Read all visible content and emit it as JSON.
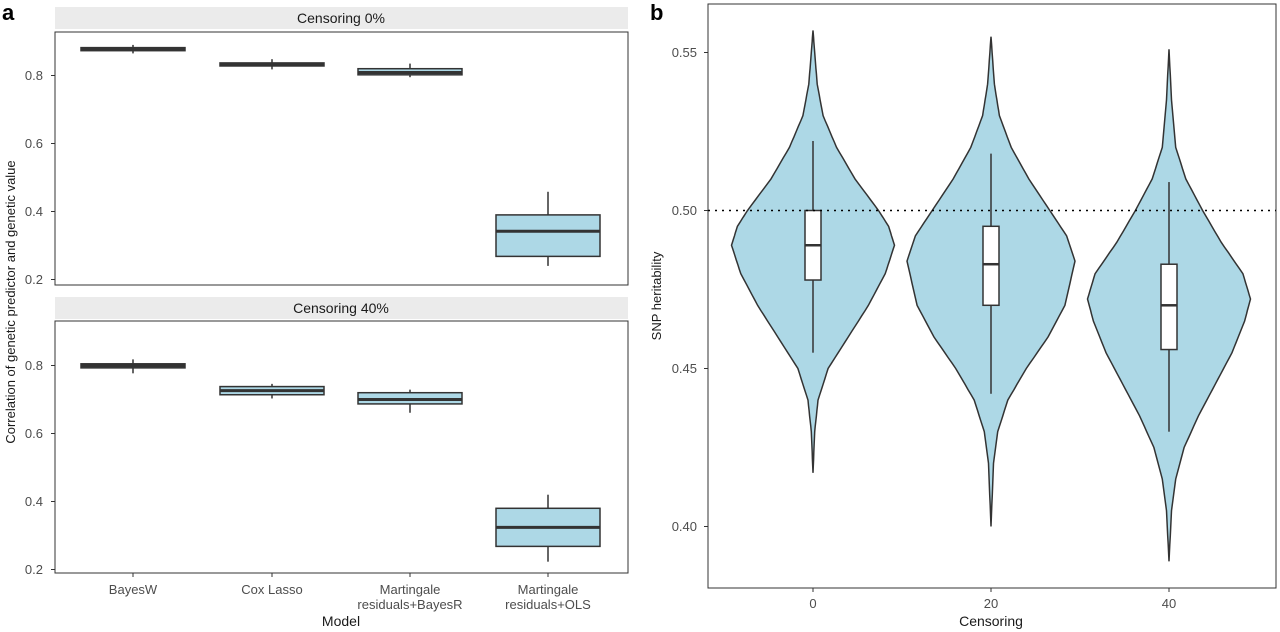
{
  "panel_a": {
    "label": "a",
    "ylabel": "Correlation of genetic predictor and genetic value",
    "xlabel": "Model",
    "categories": [
      "BayesW",
      "Cox Lasso",
      "Martingale\nresiduals+BayesR",
      "Martingale\nresiduals+OLS"
    ],
    "yticks": [
      "0.2",
      "0.4",
      "0.6",
      "0.8"
    ],
    "facets": [
      {
        "title": "Censoring 0%"
      },
      {
        "title": "Censoring 40%"
      }
    ]
  },
  "panel_b": {
    "label": "b",
    "ylabel": "SNP heritability",
    "xlabel": "Censoring",
    "xticks": [
      "0",
      "20",
      "40"
    ],
    "yticks": [
      "0.40",
      "0.45",
      "0.50",
      "0.55"
    ],
    "reference_line": 0.5
  },
  "colors": {
    "fill": "#add8e6",
    "line": "#333333",
    "strip": "#ebebeb",
    "axis_text": "#4d4d4d"
  },
  "chart_data": [
    {
      "type": "boxplot",
      "title": "Censoring 0%",
      "xlabel": "Model",
      "ylabel": "Correlation of genetic predictor and genetic value",
      "ylim": [
        0.19,
        0.92
      ],
      "categories": [
        "BayesW",
        "Cox Lasso",
        "Martingale residuals+BayesR",
        "Martingale residuals+OLS"
      ],
      "boxes": [
        {
          "min": 0.865,
          "q1": 0.873,
          "median": 0.878,
          "q3": 0.882,
          "max": 0.89
        },
        {
          "min": 0.818,
          "q1": 0.828,
          "median": 0.833,
          "q3": 0.837,
          "max": 0.848
        },
        {
          "min": 0.795,
          "q1": 0.802,
          "median": 0.809,
          "q3": 0.82,
          "max": 0.835
        },
        {
          "min": 0.24,
          "q1": 0.268,
          "median": 0.342,
          "q3": 0.39,
          "max": 0.458
        }
      ]
    },
    {
      "type": "boxplot",
      "title": "Censoring 40%",
      "xlabel": "Model",
      "ylabel": "Correlation of genetic predictor and genetic value",
      "ylim": [
        0.19,
        0.92
      ],
      "categories": [
        "BayesW",
        "Cox Lasso",
        "Martingale residuals+BayesR",
        "Martingale residuals+OLS"
      ],
      "boxes": [
        {
          "min": 0.777,
          "q1": 0.793,
          "median": 0.799,
          "q3": 0.805,
          "max": 0.818
        },
        {
          "min": 0.703,
          "q1": 0.714,
          "median": 0.726,
          "q3": 0.738,
          "max": 0.746
        },
        {
          "min": 0.661,
          "q1": 0.687,
          "median": 0.7,
          "q3": 0.72,
          "max": 0.729
        },
        {
          "min": 0.223,
          "q1": 0.268,
          "median": 0.324,
          "q3": 0.38,
          "max": 0.42
        }
      ]
    },
    {
      "type": "violin",
      "xlabel": "Censoring",
      "ylabel": "SNP heritability",
      "ylim": [
        0.385,
        0.565
      ],
      "categories": [
        "0",
        "20",
        "40"
      ],
      "reference_line": 0.5,
      "violins": [
        {
          "min": 0.417,
          "max": 0.557,
          "box": {
            "lower_whisker": 0.455,
            "q1": 0.478,
            "median": 0.489,
            "q3": 0.5,
            "upper_whisker": 0.522
          },
          "width_profile": [
            [
              0.417,
              0
            ],
            [
              0.43,
              0.02
            ],
            [
              0.44,
              0.06
            ],
            [
              0.45,
              0.18
            ],
            [
              0.46,
              0.42
            ],
            [
              0.47,
              0.66
            ],
            [
              0.48,
              0.86
            ],
            [
              0.489,
              0.97
            ],
            [
              0.495,
              0.9
            ],
            [
              0.5,
              0.78
            ],
            [
              0.51,
              0.5
            ],
            [
              0.52,
              0.28
            ],
            [
              0.53,
              0.12
            ],
            [
              0.54,
              0.05
            ],
            [
              0.55,
              0.02
            ],
            [
              0.557,
              0
            ]
          ]
        },
        {
          "min": 0.4,
          "max": 0.555,
          "box": {
            "lower_whisker": 0.442,
            "q1": 0.47,
            "median": 0.483,
            "q3": 0.495,
            "upper_whisker": 0.518
          },
          "width_profile": [
            [
              0.4,
              0
            ],
            [
              0.42,
              0.03
            ],
            [
              0.43,
              0.08
            ],
            [
              0.44,
              0.2
            ],
            [
              0.45,
              0.42
            ],
            [
              0.46,
              0.68
            ],
            [
              0.47,
              0.88
            ],
            [
              0.484,
              1.0
            ],
            [
              0.492,
              0.9
            ],
            [
              0.5,
              0.7
            ],
            [
              0.51,
              0.45
            ],
            [
              0.52,
              0.24
            ],
            [
              0.53,
              0.1
            ],
            [
              0.54,
              0.04
            ],
            [
              0.555,
              0
            ]
          ]
        },
        {
          "min": 0.389,
          "max": 0.551,
          "box": {
            "lower_whisker": 0.43,
            "q1": 0.456,
            "median": 0.47,
            "q3": 0.483,
            "upper_whisker": 0.509
          },
          "width_profile": [
            [
              0.389,
              0
            ],
            [
              0.405,
              0.03
            ],
            [
              0.415,
              0.08
            ],
            [
              0.425,
              0.18
            ],
            [
              0.435,
              0.35
            ],
            [
              0.445,
              0.55
            ],
            [
              0.455,
              0.75
            ],
            [
              0.465,
              0.9
            ],
            [
              0.472,
              0.97
            ],
            [
              0.48,
              0.88
            ],
            [
              0.49,
              0.62
            ],
            [
              0.5,
              0.4
            ],
            [
              0.51,
              0.2
            ],
            [
              0.52,
              0.08
            ],
            [
              0.535,
              0.03
            ],
            [
              0.551,
              0
            ]
          ]
        }
      ]
    }
  ]
}
